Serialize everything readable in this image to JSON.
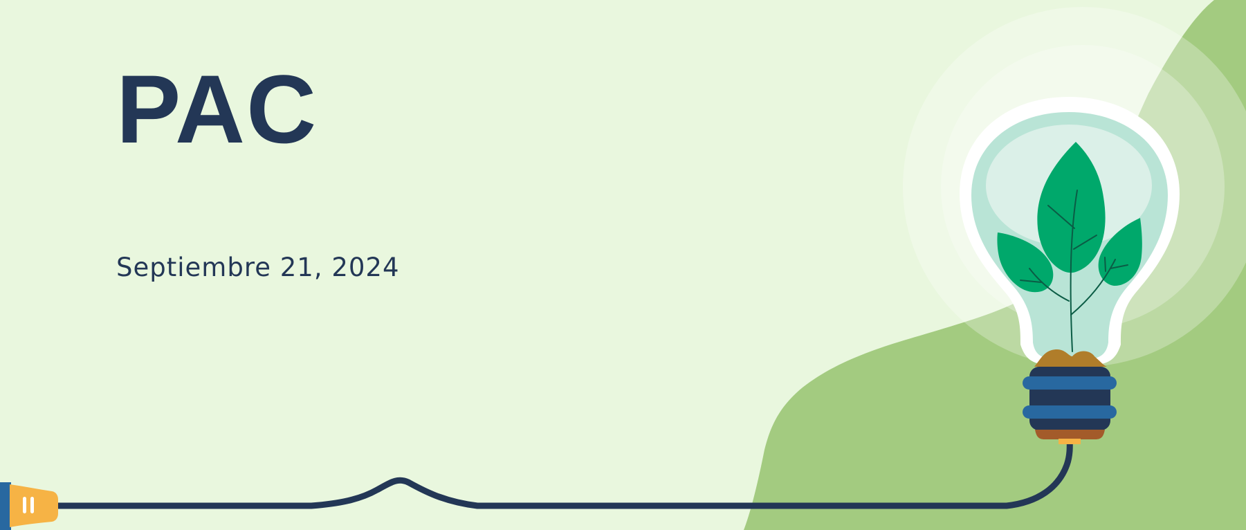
{
  "slide": {
    "title": "PAC",
    "date": "Septiembre 21, 2024"
  },
  "illustration": {
    "icons": [
      "lightbulb-icon",
      "plant-sprout-icon",
      "power-plug-icon"
    ]
  },
  "colors": {
    "background": "#e9f7de",
    "hill": "#a3cb80",
    "title": "#233756",
    "cord": "#233756",
    "leaf": "#00a86b",
    "bulb_glass": "#b9e4d6",
    "socket_band": "#2868a0",
    "plug": "#f6b345",
    "soil": "#b07d2a"
  }
}
